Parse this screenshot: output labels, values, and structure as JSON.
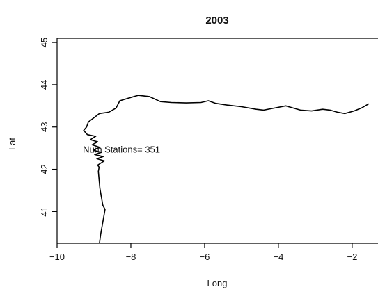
{
  "chart_data": {
    "type": "line",
    "title": "2003",
    "xlabel": "Long",
    "ylabel": "Lat",
    "xlim": [
      -10,
      -1.3
    ],
    "ylim": [
      40.25,
      45.1
    ],
    "x_ticks": [
      -10,
      -8,
      -6,
      -4,
      -2
    ],
    "y_ticks": [
      41,
      42,
      43,
      44,
      45
    ],
    "x_tick_labels": [
      "−10",
      "−8",
      "−6",
      "−4",
      "−2"
    ],
    "y_tick_labels": [
      "41",
      "42",
      "43",
      "44",
      "45"
    ],
    "grid": false,
    "legend": "none",
    "annotation": {
      "text": "Num Stations= 351",
      "x": -9.3,
      "y": 42.45
    },
    "series": [
      {
        "color": "#000000",
        "points": [
          [
            -8.85,
            40.25
          ],
          [
            -8.82,
            40.45
          ],
          [
            -8.78,
            40.65
          ],
          [
            -8.74,
            40.85
          ],
          [
            -8.7,
            41.05
          ],
          [
            -8.76,
            41.15
          ],
          [
            -8.8,
            41.35
          ],
          [
            -8.84,
            41.55
          ],
          [
            -8.86,
            41.75
          ],
          [
            -8.88,
            41.95
          ],
          [
            -8.86,
            42.05
          ],
          [
            -8.9,
            42.1
          ],
          [
            -8.72,
            42.2
          ],
          [
            -8.92,
            42.25
          ],
          [
            -8.75,
            42.3
          ],
          [
            -8.98,
            42.35
          ],
          [
            -8.8,
            42.4
          ],
          [
            -9.02,
            42.45
          ],
          [
            -8.85,
            42.52
          ],
          [
            -9.05,
            42.58
          ],
          [
            -8.9,
            42.65
          ],
          [
            -9.1,
            42.7
          ],
          [
            -8.95,
            42.78
          ],
          [
            -9.18,
            42.82
          ],
          [
            -9.28,
            42.92
          ],
          [
            -9.2,
            43.0
          ],
          [
            -9.15,
            43.12
          ],
          [
            -9.0,
            43.22
          ],
          [
            -8.85,
            43.32
          ],
          [
            -8.6,
            43.35
          ],
          [
            -8.4,
            43.45
          ],
          [
            -8.3,
            43.62
          ],
          [
            -8.0,
            43.7
          ],
          [
            -7.8,
            43.75
          ],
          [
            -7.5,
            43.72
          ],
          [
            -7.2,
            43.6
          ],
          [
            -6.9,
            43.58
          ],
          [
            -6.5,
            43.57
          ],
          [
            -6.1,
            43.58
          ],
          [
            -5.9,
            43.62
          ],
          [
            -5.7,
            43.56
          ],
          [
            -5.4,
            43.52
          ],
          [
            -5.0,
            43.48
          ],
          [
            -4.6,
            43.42
          ],
          [
            -4.4,
            43.4
          ],
          [
            -4.1,
            43.45
          ],
          [
            -3.8,
            43.5
          ],
          [
            -3.6,
            43.45
          ],
          [
            -3.4,
            43.4
          ],
          [
            -3.1,
            43.38
          ],
          [
            -2.8,
            43.42
          ],
          [
            -2.6,
            43.4
          ],
          [
            -2.4,
            43.35
          ],
          [
            -2.2,
            43.32
          ],
          [
            -1.95,
            43.38
          ],
          [
            -1.75,
            43.45
          ],
          [
            -1.55,
            43.55
          ]
        ]
      }
    ]
  },
  "style": {
    "line_color": "#000000",
    "text_color": "#111111",
    "background": "#ffffff"
  }
}
